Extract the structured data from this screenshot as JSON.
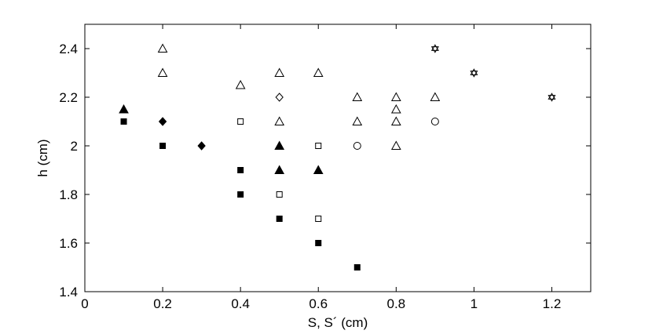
{
  "chart_data": {
    "type": "scatter",
    "title": "",
    "xlabel": "S, S´ (cm)",
    "ylabel": "h (cm)",
    "xlim": [
      0,
      1.3
    ],
    "ylim": [
      1.4,
      2.5
    ],
    "xticks": [
      0,
      0.2,
      0.4,
      0.6,
      0.8,
      1,
      1.2
    ],
    "xtick_labels": [
      "0",
      "0.2",
      "0.4",
      "0.6",
      "0.8",
      "1",
      "1.2"
    ],
    "yticks": [
      1.4,
      1.6,
      1.8,
      2.0,
      2.2,
      2.4
    ],
    "ytick_labels": [
      "1.4",
      "1.6",
      "1.8",
      "2",
      "2.2",
      "2.4"
    ],
    "grid": false,
    "series": [
      {
        "marker": "filled-square",
        "points": [
          [
            0.1,
            2.1
          ],
          [
            0.2,
            2.0
          ],
          [
            0.4,
            1.9
          ],
          [
            0.4,
            1.8
          ],
          [
            0.5,
            1.7
          ],
          [
            0.6,
            1.6
          ],
          [
            0.7,
            1.5
          ]
        ]
      },
      {
        "marker": "filled-triangle",
        "points": [
          [
            0.1,
            2.15
          ],
          [
            0.5,
            2.0
          ],
          [
            0.5,
            1.9
          ],
          [
            0.6,
            1.9
          ]
        ]
      },
      {
        "marker": "filled-diamond",
        "points": [
          [
            0.2,
            2.1
          ],
          [
            0.3,
            2.0
          ]
        ]
      },
      {
        "marker": "open-square",
        "points": [
          [
            0.4,
            2.1
          ],
          [
            0.6,
            2.0
          ],
          [
            0.5,
            1.8
          ],
          [
            0.6,
            1.7
          ]
        ]
      },
      {
        "marker": "open-triangle",
        "points": [
          [
            0.2,
            2.4
          ],
          [
            0.2,
            2.3
          ],
          [
            0.4,
            2.25
          ],
          [
            0.5,
            2.3
          ],
          [
            0.5,
            2.1
          ],
          [
            0.6,
            2.3
          ],
          [
            0.7,
            2.2
          ],
          [
            0.7,
            2.1
          ],
          [
            0.8,
            2.2
          ],
          [
            0.8,
            2.15
          ],
          [
            0.8,
            2.1
          ],
          [
            0.8,
            2.0
          ],
          [
            0.9,
            2.2
          ]
        ]
      },
      {
        "marker": "open-diamond",
        "points": [
          [
            0.5,
            2.2
          ]
        ]
      },
      {
        "marker": "open-circle",
        "points": [
          [
            0.7,
            2.0
          ],
          [
            0.9,
            2.1
          ]
        ]
      },
      {
        "marker": "hexagram",
        "points": [
          [
            0.9,
            2.4
          ],
          [
            1.0,
            2.3
          ],
          [
            1.2,
            2.2
          ]
        ]
      }
    ]
  }
}
